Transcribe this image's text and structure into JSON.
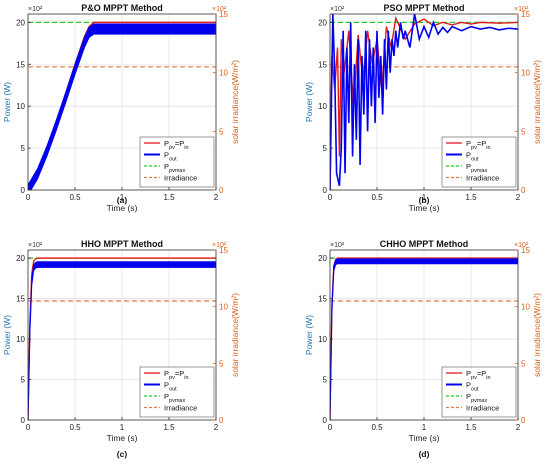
{
  "figure": {
    "colors": {
      "pv": "#e31a1c",
      "out": "#0000ee",
      "pvmax": "#22cc22",
      "irr": "#e07a3a",
      "left_axis": "#1f77b4",
      "right_axis": "#d95f1a",
      "grid": "#e3e3e3"
    }
  },
  "chart_data": [
    {
      "type": "line",
      "panel": "(a)",
      "title": "P&O MPPT Method",
      "xlabel": "Time (s)",
      "ylabel": "Power (W)",
      "ylabel_right": "solar irradiance(W/m²)",
      "y_exponent": "×10²",
      "y2_exponent": "×10²",
      "xlim": [
        0,
        2
      ],
      "ylim": [
        0,
        21
      ],
      "y2lim": [
        0,
        15
      ],
      "xticks": [
        "0",
        "0.5",
        "1",
        "1.5",
        "2"
      ],
      "yticks": [
        "0",
        "5",
        "10",
        "15",
        "20"
      ],
      "y2ticks": [
        "0",
        "5",
        "10",
        "15"
      ],
      "grid": true,
      "legend_position": "bottom-right",
      "legend": [
        "P_pv=P_in",
        "P_out",
        "P_pvmax",
        "Irradiance"
      ],
      "series": [
        {
          "name": "P_pv=P_in",
          "axis": "left",
          "x": [
            0,
            0.1,
            0.2,
            0.3,
            0.4,
            0.5,
            0.6,
            0.65,
            0.7,
            2
          ],
          "y": [
            0,
            2,
            4.8,
            8,
            11.5,
            15,
            18.3,
            19.5,
            20,
            20
          ]
        },
        {
          "name": "P_out",
          "axis": "left",
          "band": 0.6,
          "x": [
            0,
            0.1,
            0.2,
            0.3,
            0.4,
            0.5,
            0.6,
            0.65,
            0.7,
            2
          ],
          "y": [
            0,
            1.9,
            4.6,
            7.7,
            11,
            14.4,
            17.6,
            18.8,
            19.2,
            19.2
          ]
        },
        {
          "name": "P_pvmax",
          "axis": "left",
          "x": [
            0,
            2
          ],
          "y": [
            20,
            20
          ]
        },
        {
          "name": "Irradiance",
          "axis": "left",
          "x": [
            0,
            2
          ],
          "y": [
            14.7,
            14.7
          ]
        }
      ]
    },
    {
      "type": "line",
      "panel": "(b)",
      "title": "PSO MPPT Method",
      "xlabel": "Time (s)",
      "ylabel": "Power (W)",
      "ylabel_right": "solar irradiance(W/m²)",
      "y_exponent": "×10²",
      "y2_exponent": "×10²",
      "xlim": [
        0,
        2
      ],
      "ylim": [
        0,
        21
      ],
      "y2lim": [
        0,
        15
      ],
      "xticks": [
        "0",
        "0.5",
        "1",
        "1.5",
        "2"
      ],
      "yticks": [
        "0",
        "5",
        "10",
        "15",
        "20"
      ],
      "y2ticks": [
        "0",
        "5",
        "10",
        "15"
      ],
      "grid": true,
      "legend_position": "bottom-right",
      "legend": [
        "P_pv=P_in",
        "P_out",
        "P_pvmax",
        "Irradiance"
      ],
      "series": [
        {
          "name": "P_pv=P_in",
          "axis": "left",
          "x": [
            0,
            0.02,
            0.05,
            0.08,
            0.1,
            0.12,
            0.15,
            0.2,
            0.25,
            0.3,
            0.35,
            0.4,
            0.45,
            0.5,
            0.55,
            0.6,
            0.65,
            0.7,
            0.8,
            0.9,
            1.0,
            1.1,
            1.2,
            1.3,
            1.4,
            1.5,
            1.6,
            1.8,
            2.0
          ],
          "y": [
            0,
            16,
            12,
            17,
            4,
            18,
            14,
            19,
            10,
            18.5,
            13,
            19,
            15,
            18,
            12,
            19.5,
            17,
            20.5,
            18,
            19.8,
            20.4,
            19.6,
            20,
            19.7,
            20,
            19.8,
            20,
            19.9,
            20
          ]
        },
        {
          "name": "P_out",
          "axis": "left",
          "x": [
            0,
            0.03,
            0.05,
            0.07,
            0.1,
            0.12,
            0.14,
            0.16,
            0.18,
            0.2,
            0.22,
            0.24,
            0.26,
            0.28,
            0.3,
            0.32,
            0.34,
            0.36,
            0.38,
            0.4,
            0.42,
            0.44,
            0.46,
            0.48,
            0.5,
            0.52,
            0.54,
            0.56,
            0.58,
            0.6,
            0.62,
            0.64,
            0.66,
            0.68,
            0.7,
            0.72,
            0.75,
            0.78,
            0.8,
            0.85,
            0.9,
            0.95,
            1.0,
            1.05,
            1.1,
            1.15,
            1.2,
            1.25,
            1.3,
            1.4,
            1.5,
            1.6,
            1.7,
            1.8,
            1.9,
            2.0
          ],
          "y": [
            0,
            21,
            14,
            2,
            0.5,
            5,
            19,
            2,
            17,
            8,
            20,
            4,
            15,
            6,
            18,
            3,
            16,
            9,
            19,
            7,
            18,
            10,
            17,
            8,
            19,
            11,
            16,
            9,
            18,
            12,
            19,
            14,
            18,
            16,
            19,
            17,
            20,
            18,
            19,
            17,
            21,
            18,
            19.5,
            18.2,
            20,
            18.6,
            19.4,
            18.8,
            19.5,
            19,
            19.5,
            19.2,
            19.4,
            19.1,
            19.3,
            19.2
          ]
        },
        {
          "name": "P_pvmax",
          "axis": "left",
          "x": [
            0,
            2
          ],
          "y": [
            20,
            20
          ]
        },
        {
          "name": "Irradiance",
          "axis": "left",
          "x": [
            0,
            2
          ],
          "y": [
            14.7,
            14.7
          ]
        }
      ]
    },
    {
      "type": "line",
      "panel": "(c)",
      "title": "HHO MPPT Method",
      "xlabel": "Time (s)",
      "ylabel": "Power (W)",
      "ylabel_right": "solar irradiance(W/m²)",
      "y_exponent": "×10²",
      "y2_exponent": "×10²",
      "xlim": [
        0,
        2
      ],
      "ylim": [
        0,
        21
      ],
      "y2lim": [
        0,
        15
      ],
      "xticks": [
        "0",
        "0.5",
        "1",
        "1.5",
        "2"
      ],
      "yticks": [
        "0",
        "5",
        "10",
        "15",
        "20"
      ],
      "y2ticks": [
        "0",
        "5",
        "10",
        "15"
      ],
      "grid": true,
      "legend_position": "bottom-right",
      "legend": [
        "P_pv=P_in",
        "P_out",
        "P_pvmax",
        "Irradiance"
      ],
      "series": [
        {
          "name": "P_pv=P_in",
          "axis": "left",
          "x": [
            0,
            0.02,
            0.04,
            0.06,
            0.08,
            0.1,
            2
          ],
          "y": [
            0,
            12,
            18,
            19.6,
            19.9,
            20,
            20
          ]
        },
        {
          "name": "P_out",
          "axis": "left",
          "band": 0.35,
          "x": [
            0,
            0.02,
            0.04,
            0.06,
            0.08,
            0.1,
            2
          ],
          "y": [
            0,
            11,
            17,
            18.8,
            19.1,
            19.2,
            19.2
          ]
        },
        {
          "name": "P_pvmax",
          "axis": "left",
          "x": [
            0,
            2
          ],
          "y": [
            20,
            20
          ]
        },
        {
          "name": "Irradiance",
          "axis": "left",
          "x": [
            0,
            2
          ],
          "y": [
            14.7,
            14.7
          ]
        }
      ]
    },
    {
      "type": "line",
      "panel": "(d)",
      "title": "CHHO MPPT Method",
      "xlabel": "Time (s)",
      "ylabel": "Power (W)",
      "ylabel_right": "solar irradiance(W/m²)",
      "y_exponent": "×10²",
      "y2_exponent": "×10²",
      "xlim": [
        0,
        2
      ],
      "ylim": [
        0,
        21
      ],
      "y2lim": [
        0,
        15
      ],
      "xticks": [
        "0",
        "0.5",
        "1",
        "1.5",
        "2"
      ],
      "yticks": [
        "0",
        "5",
        "10",
        "15",
        "20"
      ],
      "y2ticks": [
        "0",
        "5",
        "10",
        "15"
      ],
      "grid": true,
      "legend_position": "bottom-right",
      "legend": [
        "P_pv=P_in",
        "P_out",
        "P_pvmax",
        "Irradiance"
      ],
      "series": [
        {
          "name": "P_pv=P_in",
          "axis": "left",
          "x": [
            0,
            0.02,
            0.04,
            0.06,
            0.08,
            2
          ],
          "y": [
            0,
            14,
            19,
            19.8,
            20,
            20
          ]
        },
        {
          "name": "P_out",
          "axis": "left",
          "band": 0.3,
          "x": [
            0,
            0.02,
            0.04,
            0.06,
            0.08,
            2
          ],
          "y": [
            0,
            13.5,
            18.7,
            19.5,
            19.6,
            19.6
          ]
        },
        {
          "name": "P_pvmax",
          "axis": "left",
          "x": [
            0,
            2
          ],
          "y": [
            20,
            20
          ]
        },
        {
          "name": "Irradiance",
          "axis": "left",
          "x": [
            0,
            2
          ],
          "y": [
            14.7,
            14.7
          ]
        }
      ]
    }
  ]
}
